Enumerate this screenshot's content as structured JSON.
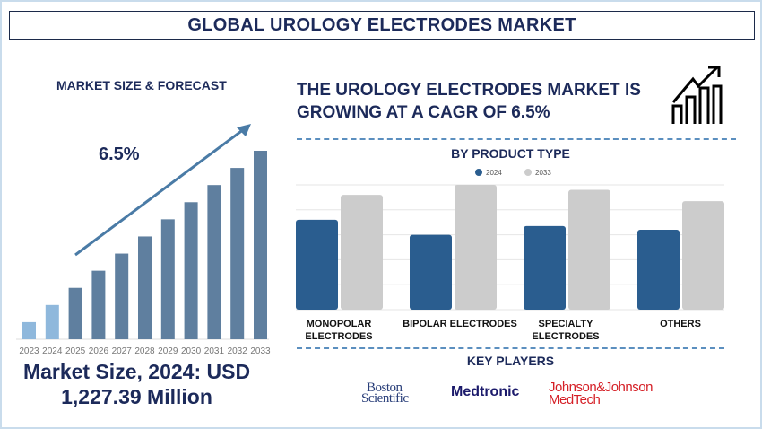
{
  "header": {
    "title": "GLOBAL UROLOGY ELECTRODES MARKET"
  },
  "left": {
    "subtitle": "MARKET SIZE & FORECAST",
    "cagr_label": "6.5%",
    "market_size_line1": "Market Size, 2024: USD",
    "market_size_line2": "1,227.39 Million"
  },
  "right": {
    "headline_line1": "THE UROLOGY ELECTRODES MARKET IS",
    "headline_line2": "GROWING AT A CAGR OF 6.5%",
    "icon": "growth-chart-icon",
    "key_players_title": "KEY PLAYERS",
    "key_players": [
      "Boston Scientific",
      "Medtronic",
      "Johnson&Johnson MedTech"
    ],
    "logo_text": {
      "boston_1": "Boston",
      "boston_2": "Scientific",
      "medtronic": "Medtronic",
      "jj_1": "Johnson&Johnson",
      "jj_2": "MedTech"
    }
  },
  "colors": {
    "navy": "#1c2a5a",
    "blue2024": "#2a5d8f",
    "grey2033": "#cccccc",
    "forecast_bar": "#5f7f9f",
    "history_bar": "#8fb8dc",
    "jj_red": "#d51f26",
    "medtronic": "#1b1a6b"
  },
  "chart_data": [
    {
      "type": "bar",
      "title": "MARKET SIZE & FORECAST",
      "categories": [
        "2023",
        "2024",
        "2025",
        "2026",
        "2027",
        "2028",
        "2029",
        "2030",
        "2031",
        "2032",
        "2033"
      ],
      "values": [
        1,
        2,
        3,
        4,
        5,
        6,
        7,
        8,
        9,
        10,
        11
      ],
      "annotation": "6.5%"
    },
    {
      "type": "bar",
      "title": "BY PRODUCT TYPE",
      "categories": [
        "MONOPOLAR ELECTRODES",
        "BIPOLAR ELECTRODES",
        "SPECIALTY ELECTRODES",
        "OTHERS"
      ],
      "series": [
        {
          "name": "2024",
          "values": [
            3.6,
            3.0,
            3.35,
            3.2
          ]
        },
        {
          "name": "2033",
          "values": [
            4.6,
            5.0,
            4.8,
            4.35
          ]
        }
      ],
      "ylim": [
        0,
        5
      ],
      "grid": true,
      "legend": "top-center"
    }
  ]
}
